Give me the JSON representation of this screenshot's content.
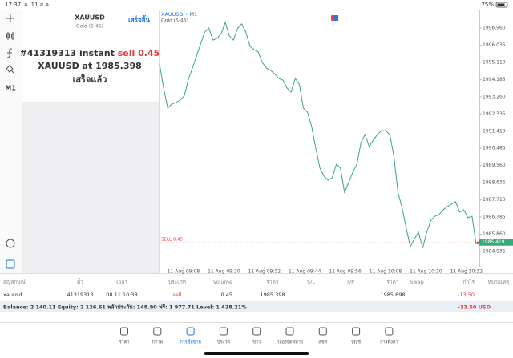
{
  "status_bar": {
    "time": "17:37",
    "date": "อ. 11 ส.ค.",
    "battery": "75%"
  },
  "toolbar": {
    "timeframe": "M1"
  },
  "order_panel": {
    "symbol": "XAUUSD",
    "description": "Gold (5-45)",
    "done_button": "เสร็จสิ้น",
    "order_line": "#41319313 instant ",
    "order_action": "sell 0.45",
    "price_line": "XAUUSD at 1985.398",
    "status": "เสร็จแล้ว"
  },
  "chart": {
    "type": "line",
    "symbol_label": "XAUUSD • M1",
    "description": "Gold (5-45)",
    "color": "#3aa87a",
    "ylim": [
      1984.115,
      1997.865
    ],
    "yticks": [
      {
        "value": 1996.96,
        "label": "1996.960"
      },
      1996.035,
      {
        "value": 1995.11,
        "label": "1995.110"
      },
      1994.185,
      {
        "value": 1993.26,
        "label": "1993.260"
      },
      1992.335,
      {
        "value": 1991.41,
        "label": "1991.410"
      },
      1990.485,
      {
        "value": 1989.56,
        "label": "1989.560"
      },
      1988.635,
      {
        "value": 1987.71,
        "label": "1987.710"
      },
      1986.785,
      {
        "value": 1985.86,
        "label": "1985.860"
      },
      1984.935
    ],
    "xticks": [
      "11 Aug 09:08",
      "11 Aug 09:20",
      "11 Aug 09:32",
      "11 Aug 09:44",
      "11 Aug 09:56",
      "11 Aug 10:08",
      "11 Aug 10:20",
      "11 Aug 10:32"
    ],
    "values": [
      1995.02,
      1993.73,
      1992.65,
      1992.87,
      1992.95,
      1993.08,
      1993.3,
      1994.16,
      1994.8,
      1995.45,
      1996.1,
      1996.74,
      1996.96,
      1996.31,
      1996.4,
      1996.66,
      1997.26,
      1996.53,
      1996.31,
      1996.96,
      1997.18,
      1996.74,
      1995.97,
      1995.8,
      1995.67,
      1995.11,
      1994.8,
      1994.68,
      1994.5,
      1994.24,
      1994.16,
      1993.73,
      1993.51,
      1994.24,
      1993.94,
      1992.65,
      1992.43,
      1991.66,
      1990.5,
      1989.42,
      1988.99,
      1988.77,
      1988.9,
      1989.63,
      1989.42,
      1988.12,
      1988.64,
      1989.2,
      1989.63,
      1990.8,
      1991.23,
      1990.58,
      1990.93,
      1991.23,
      1991.44,
      1991.44,
      1991.23,
      1990.06,
      1988.12,
      1987.26,
      1986.19,
      1985.19,
      1985.62,
      1985.97,
      1985.11,
      1985.97,
      1986.62,
      1986.83,
      1986.92,
      1987.18,
      1987.35,
      1987.48,
      1987.61,
      1987.05,
      1987.18,
      1986.75,
      1986.83,
      1985.32
    ],
    "order_level": {
      "label": "SELL 0.45",
      "value": 1985.398
    },
    "last_price": 1985.419
  },
  "table": {
    "headers": [
      "สัญลักษณ์",
      "ตั๋ว",
      "เวลา",
      "ประเภท",
      "Volume",
      "ราคา",
      "S/L",
      "T/P",
      "ราคา",
      "Swap",
      "กำไร",
      "หมายเหตุ"
    ],
    "rows": [
      [
        "xauusd",
        "41319313",
        "08.11 10:38",
        "sell",
        "0.45",
        "1985.398",
        null,
        null,
        "1985.698",
        null,
        "-13.50",
        null
      ]
    ],
    "summary": "Balance: 2 140.11 Equity: 2 126.61 พลักประกัน: 148.90 ฟรี: 1 977.71 Level: 1 428.21%",
    "summary_profit": "-13.50  USD"
  },
  "tabs": {
    "items": [
      "ราคา",
      "กราฟ",
      "การซื้อขาย",
      "ประวัติ",
      "ข่าว",
      "กล่องจดหมาย",
      "แชท",
      "บัญชี",
      "การตั้งค่า"
    ],
    "active": 2
  }
}
